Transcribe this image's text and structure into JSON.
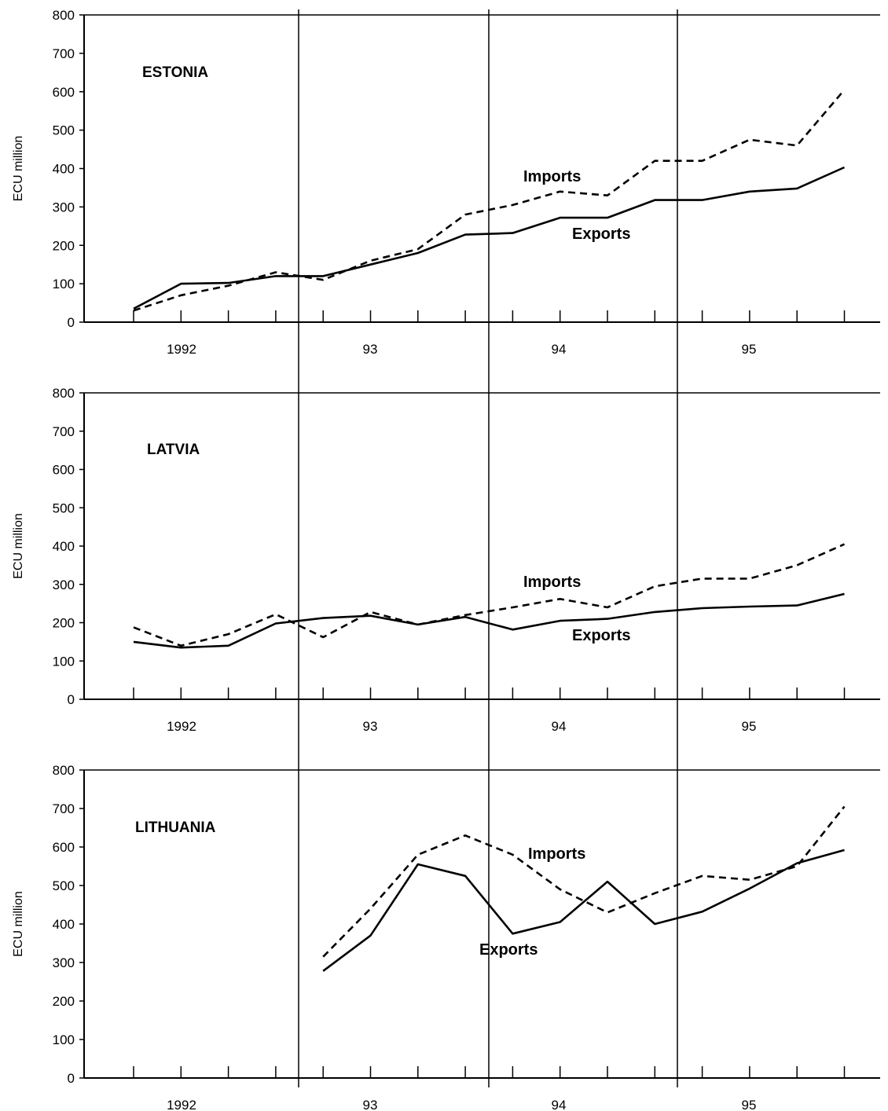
{
  "chart_data": [
    {
      "type": "line",
      "title": "ESTONIA",
      "ylabel": "ECU million",
      "ylim": [
        0,
        800
      ],
      "yticks": [
        "0",
        "100",
        "200",
        "300",
        "400",
        "500",
        "600",
        "700",
        "800"
      ],
      "year_labels": [
        "1992",
        "93",
        "94",
        "95"
      ],
      "x": [
        "1992 Q1",
        "1992 Q2",
        "1992 Q3",
        "1992 Q4",
        "1993 Q1",
        "1993 Q2",
        "1993 Q3",
        "1993 Q4",
        "1994 Q1",
        "1994 Q2",
        "1994 Q3",
        "1994 Q4",
        "1995 Q1",
        "1995 Q2",
        "1995 Q3",
        "1995 Q4"
      ],
      "series": [
        {
          "name": "Imports",
          "style": "dashed",
          "values": [
            30,
            70,
            95,
            130,
            110,
            160,
            190,
            280,
            305,
            340,
            330,
            420,
            420,
            475,
            460,
            605
          ]
        },
        {
          "name": "Exports",
          "style": "solid",
          "values": [
            35,
            100,
            102,
            120,
            120,
            150,
            180,
            228,
            232,
            272,
            272,
            318,
            318,
            340,
            348,
            403
          ]
        }
      ],
      "grid": false
    },
    {
      "type": "line",
      "title": "LATVIA",
      "ylabel": "ECU million",
      "ylim": [
        0,
        800
      ],
      "yticks": [
        "0",
        "100",
        "200",
        "300",
        "400",
        "500",
        "600",
        "700",
        "800"
      ],
      "year_labels": [
        "1992",
        "93",
        "94",
        "95"
      ],
      "x": [
        "1992 Q1",
        "1992 Q2",
        "1992 Q3",
        "1992 Q4",
        "1993 Q1",
        "1993 Q2",
        "1993 Q3",
        "1993 Q4",
        "1994 Q1",
        "1994 Q2",
        "1994 Q3",
        "1994 Q4",
        "1995 Q1",
        "1995 Q2",
        "1995 Q3",
        "1995 Q4"
      ],
      "series": [
        {
          "name": "Imports",
          "style": "dashed",
          "values": [
            188,
            140,
            170,
            222,
            162,
            228,
            195,
            220,
            240,
            262,
            240,
            295,
            315,
            315,
            350,
            405
          ]
        },
        {
          "name": "Exports",
          "style": "solid",
          "values": [
            150,
            135,
            140,
            198,
            212,
            218,
            195,
            215,
            182,
            205,
            210,
            228,
            238,
            242,
            245,
            275
          ]
        }
      ],
      "grid": false
    },
    {
      "type": "line",
      "title": "LITHUANIA",
      "ylabel": "ECU million",
      "ylim": [
        0,
        800
      ],
      "yticks": [
        "0",
        "100",
        "200",
        "300",
        "400",
        "500",
        "600",
        "700",
        "800"
      ],
      "year_labels": [
        "1992",
        "93",
        "94",
        "95"
      ],
      "x": [
        "1993 Q1",
        "1993 Q2",
        "1993 Q3",
        "1993 Q4",
        "1994 Q1",
        "1994 Q2",
        "1994 Q3",
        "1994 Q4",
        "1995 Q1",
        "1995 Q2",
        "1995 Q3",
        "1995 Q4"
      ],
      "series": [
        {
          "name": "Imports",
          "style": "dashed",
          "values": [
            315,
            440,
            580,
            630,
            580,
            490,
            430,
            480,
            525,
            515,
            550,
            705
          ]
        },
        {
          "name": "Exports",
          "style": "solid",
          "values": [
            278,
            370,
            555,
            525,
            375,
            405,
            510,
            400,
            432,
            492,
            558,
            592
          ]
        }
      ],
      "grid": false
    }
  ]
}
